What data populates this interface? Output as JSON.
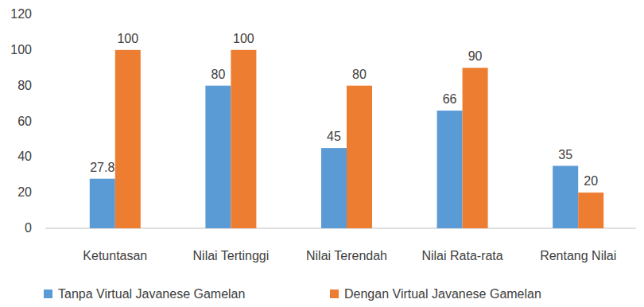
{
  "chart_data": {
    "type": "bar",
    "categories": [
      "Ketuntasan",
      "Nilai Tertinggi",
      "Nilai Terendah",
      "Nilai Rata-rata",
      "Rentang Nilai"
    ],
    "series": [
      {
        "name": "Tanpa Virtual Javanese Gamelan",
        "color": "#5b9bd5",
        "values": [
          27.8,
          80,
          45,
          66,
          35
        ]
      },
      {
        "name": "Dengan Virtual Javanese Gamelan",
        "color": "#ed7d31",
        "values": [
          100,
          100,
          80,
          90,
          20
        ]
      }
    ],
    "ylim": [
      0,
      120
    ],
    "yticks": [
      0,
      20,
      40,
      60,
      80,
      100,
      120
    ],
    "grid": false,
    "legend": "bottom",
    "data_labels": true
  }
}
